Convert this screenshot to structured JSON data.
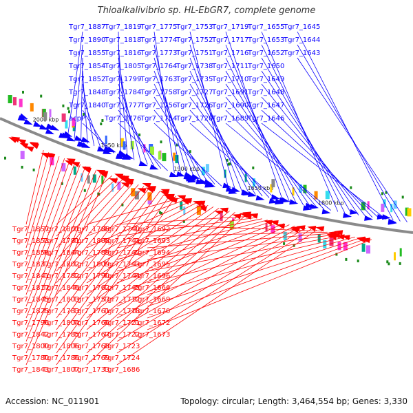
{
  "title": "Thioalkalivibrio sp. HL-EbGR7, complete genome",
  "footer": {
    "accession": "Accession: NC_011901",
    "info": "Topology: circular; Length: 3,464,554 bp; Genes: 3,330"
  },
  "colors": {
    "forward": "#0a00ff",
    "reverse": "#ff0000",
    "backbone": "#8a8a8a",
    "marker": "#1b8a1b"
  },
  "ticks": [
    "2000 kbp",
    "1950 kbp",
    "1900 kbp",
    "1850 kbp",
    "1800 kbp"
  ],
  "forward_labels": [
    "Tgr7_1887",
    "Tgr7_1890",
    "Tgr7_1855",
    "Tgr7_1854",
    "Tgr7_1852",
    "Tgr7_1848",
    "Tgr7_1840",
    "acpP",
    "Tgr7_1819",
    "Tgr7_1818",
    "Tgr7_1816",
    "Tgr7_1805",
    "Tgr7_1799",
    "Tgr7_1784",
    "Tgr7_1777",
    "Tgr7_1776",
    "Tgr7_1775",
    "Tgr7_1774",
    "Tgr7_1773",
    "Tgr7_1764",
    "Tgr7_1763",
    "Tgr7_1758",
    "Tgr7_1756",
    "Tgr7_1754",
    "Tgr7_1753",
    "Tgr7_1752",
    "Tgr7_1751",
    "Tgr7_1738",
    "Tgr7_1735",
    "Tgr7_1727",
    "Tgr7_1726",
    "Tgr7_1720",
    "Tgr7_1719",
    "Tgr7_1717",
    "Tgr7_1716",
    "Tgr7_1711",
    "Tgr7_1710",
    "Tgr7_1691",
    "Tgr7_1690",
    "Tgr7_1689",
    "Tgr7_1655",
    "Tgr7_1653",
    "Tgr7_1652",
    "Tgr7_1650",
    "Tgr7_1649",
    "Tgr7_1648",
    "Tgr7_1647",
    "Tgr7_1646",
    "Tgr7_1645",
    "Tgr7_1644",
    "Tgr7_1643"
  ],
  "reverse_labels": [
    "Tgr7_1857",
    "Tgr7_1853",
    "Tgr7_1856",
    "Tgr7_1837",
    "Tgr7_1841",
    "Tgr7_1817",
    "Tgr7_1845",
    "Tgr7_1825",
    "Tgr7_1796",
    "Tgr7_1842",
    "Tgr7_1800",
    "Tgr7_1780",
    "Tgr7_1843",
    "Tgr7_1801",
    "Tgr7_1781",
    "Tgr7_1844",
    "Tgr7_1802",
    "Tgr7_1782",
    "Tgr7_1846",
    "Tgr7_1803",
    "Tgr7_1783",
    "Tgr7_1804",
    "Tgr7_1785",
    "Tgr7_1806",
    "Tgr7_1786",
    "Tgr7_1807",
    "Tgr7_1788",
    "Tgr7_1808",
    "Tgr7_1789",
    "Tgr7_1809",
    "Tgr7_1790",
    "Tgr7_1762",
    "Tgr7_1757",
    "Tgr7_1761",
    "Tgr7_1766",
    "Tgr7_1767",
    "Tgr7_1768",
    "Tgr7_1769",
    "Tgr7_1733",
    "Tgr7_1740",
    "Tgr7_1741",
    "Tgr7_1742",
    "Tgr7_1743",
    "Tgr7_1744",
    "Tgr7_1745",
    "Tgr7_1712",
    "Tgr7_1718",
    "Tgr7_1721",
    "Tgr7_1722",
    "Tgr7_1723",
    "Tgr7_1724",
    "Tgr7_1686",
    "Tgr7_1692",
    "Tgr7_1693",
    "Tgr7_1694",
    "Tgr7_1695",
    "Tgr7_1696",
    "Tgr7_1666",
    "Tgr7_1669",
    "Tgr7_1670",
    "Tgr7_1672",
    "Tgr7_1673"
  ]
}
